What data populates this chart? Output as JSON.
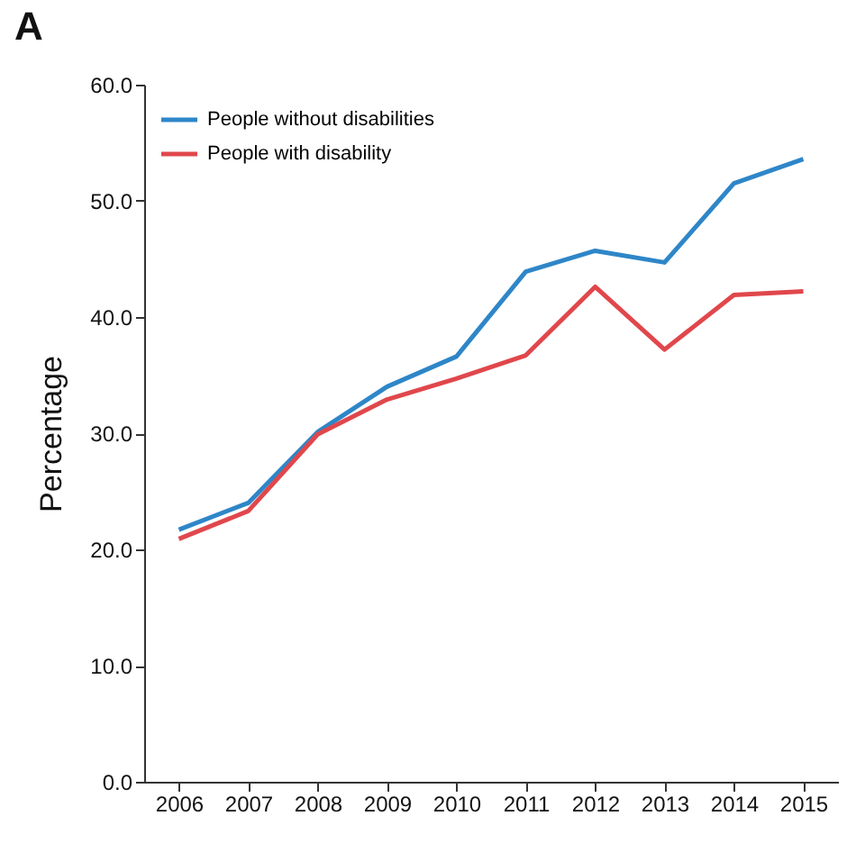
{
  "chart_data": {
    "type": "line",
    "title": "A",
    "ylabel": "Percentage",
    "categories": [
      "2006",
      "2007",
      "2008",
      "2009",
      "2010",
      "2011",
      "2012",
      "2013",
      "2014",
      "2015"
    ],
    "series": [
      {
        "name": "People without disabilities",
        "color": "#2e86c8",
        "values": [
          21.7,
          24.0,
          30.1,
          34.0,
          36.6,
          43.9,
          45.7,
          44.7,
          51.5,
          53.6
        ]
      },
      {
        "name": "People with disability",
        "color": "#e0474c",
        "values": [
          20.9,
          23.3,
          29.9,
          32.9,
          34.7,
          36.7,
          42.6,
          37.2,
          41.9,
          42.2
        ]
      }
    ],
    "ylim": [
      0,
      60
    ],
    "yticks": [
      {
        "value": 0,
        "label": "0.0"
      },
      {
        "value": 10,
        "label": "10.0"
      },
      {
        "value": 20,
        "label": "20.0"
      },
      {
        "value": 30,
        "label": "30.0"
      },
      {
        "value": 40,
        "label": "40.0"
      },
      {
        "value": 50,
        "label": "50.0"
      },
      {
        "value": 60,
        "label": "60.0"
      }
    ],
    "grid": false,
    "legend": "top left",
    "marker": "none",
    "line_style": "solid"
  }
}
